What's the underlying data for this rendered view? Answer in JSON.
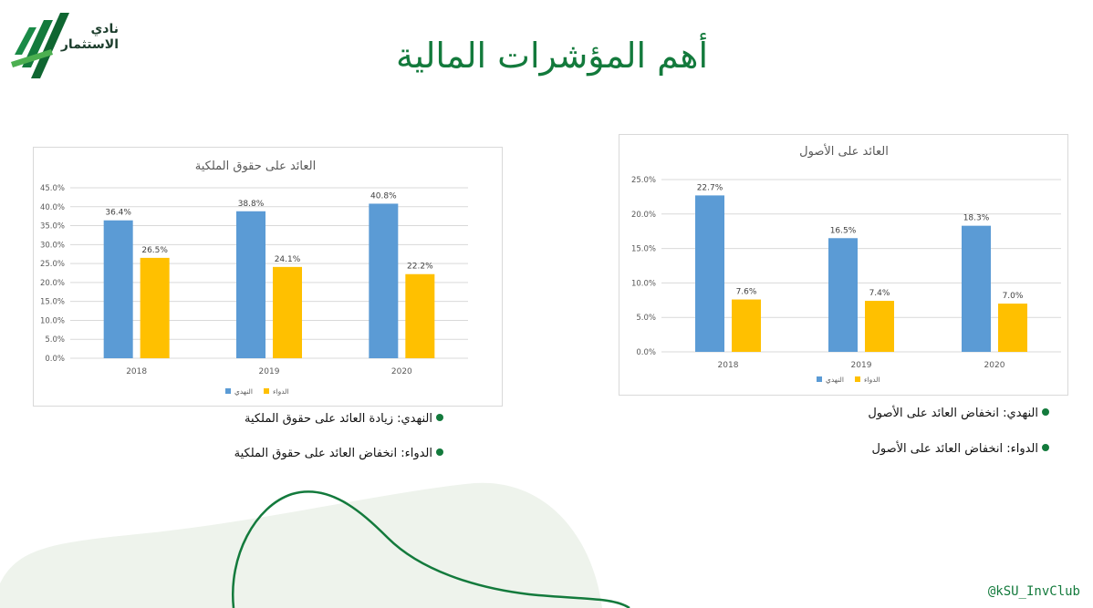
{
  "header": {
    "title": "أهم المؤشرات المالية",
    "logo_line1": "نادي",
    "logo_line2": "الاستثمار"
  },
  "colors": {
    "brand_green": "#137a3c",
    "series_nahdi": "#5b9bd5",
    "series_dawaa": "#ffc000"
  },
  "chart_data": [
    {
      "type": "bar",
      "title": "العائد على حقوق الملكية",
      "categories": [
        "2018",
        "2019",
        "2020"
      ],
      "series": [
        {
          "name": "النهدي",
          "values": [
            36.4,
            38.8,
            40.8
          ],
          "labels": [
            "36.4%",
            "38.8%",
            "40.8%"
          ]
        },
        {
          "name": "الدواء",
          "values": [
            26.5,
            24.1,
            22.2
          ],
          "labels": [
            "26.5%",
            "24.1%",
            "22.2%"
          ]
        }
      ],
      "ylim": [
        0,
        45
      ],
      "yticks": [
        "0.0%",
        "5.0%",
        "10.0%",
        "15.0%",
        "20.0%",
        "25.0%",
        "30.0%",
        "35.0%",
        "40.0%",
        "45.0%"
      ],
      "grid": true,
      "legend": "bottom"
    },
    {
      "type": "bar",
      "title": "العائد على الأصول",
      "categories": [
        "2018",
        "2019",
        "2020"
      ],
      "series": [
        {
          "name": "النهدي",
          "values": [
            22.7,
            16.5,
            18.3
          ],
          "labels": [
            "22.7%",
            "16.5%",
            "18.3%"
          ]
        },
        {
          "name": "الدواء",
          "values": [
            7.6,
            7.4,
            7.0
          ],
          "labels": [
            "7.6%",
            "7.4%",
            "7.0%"
          ]
        }
      ],
      "ylim": [
        0,
        25
      ],
      "yticks": [
        "0.0%",
        "5.0%",
        "10.0%",
        "15.0%",
        "20.0%",
        "25.0%"
      ],
      "grid": true,
      "legend": "bottom"
    }
  ],
  "notes_left": [
    "النهدي: زيادة العائد على حقوق الملكية",
    "الدواء: انخفاض العائد على حقوق الملكية"
  ],
  "notes_right": [
    "النهدي: انخفاض العائد على الأصول",
    "الدواء: انخفاض العائد على الأصول"
  ],
  "footer": {
    "handle": "@kSU_InvClub"
  }
}
